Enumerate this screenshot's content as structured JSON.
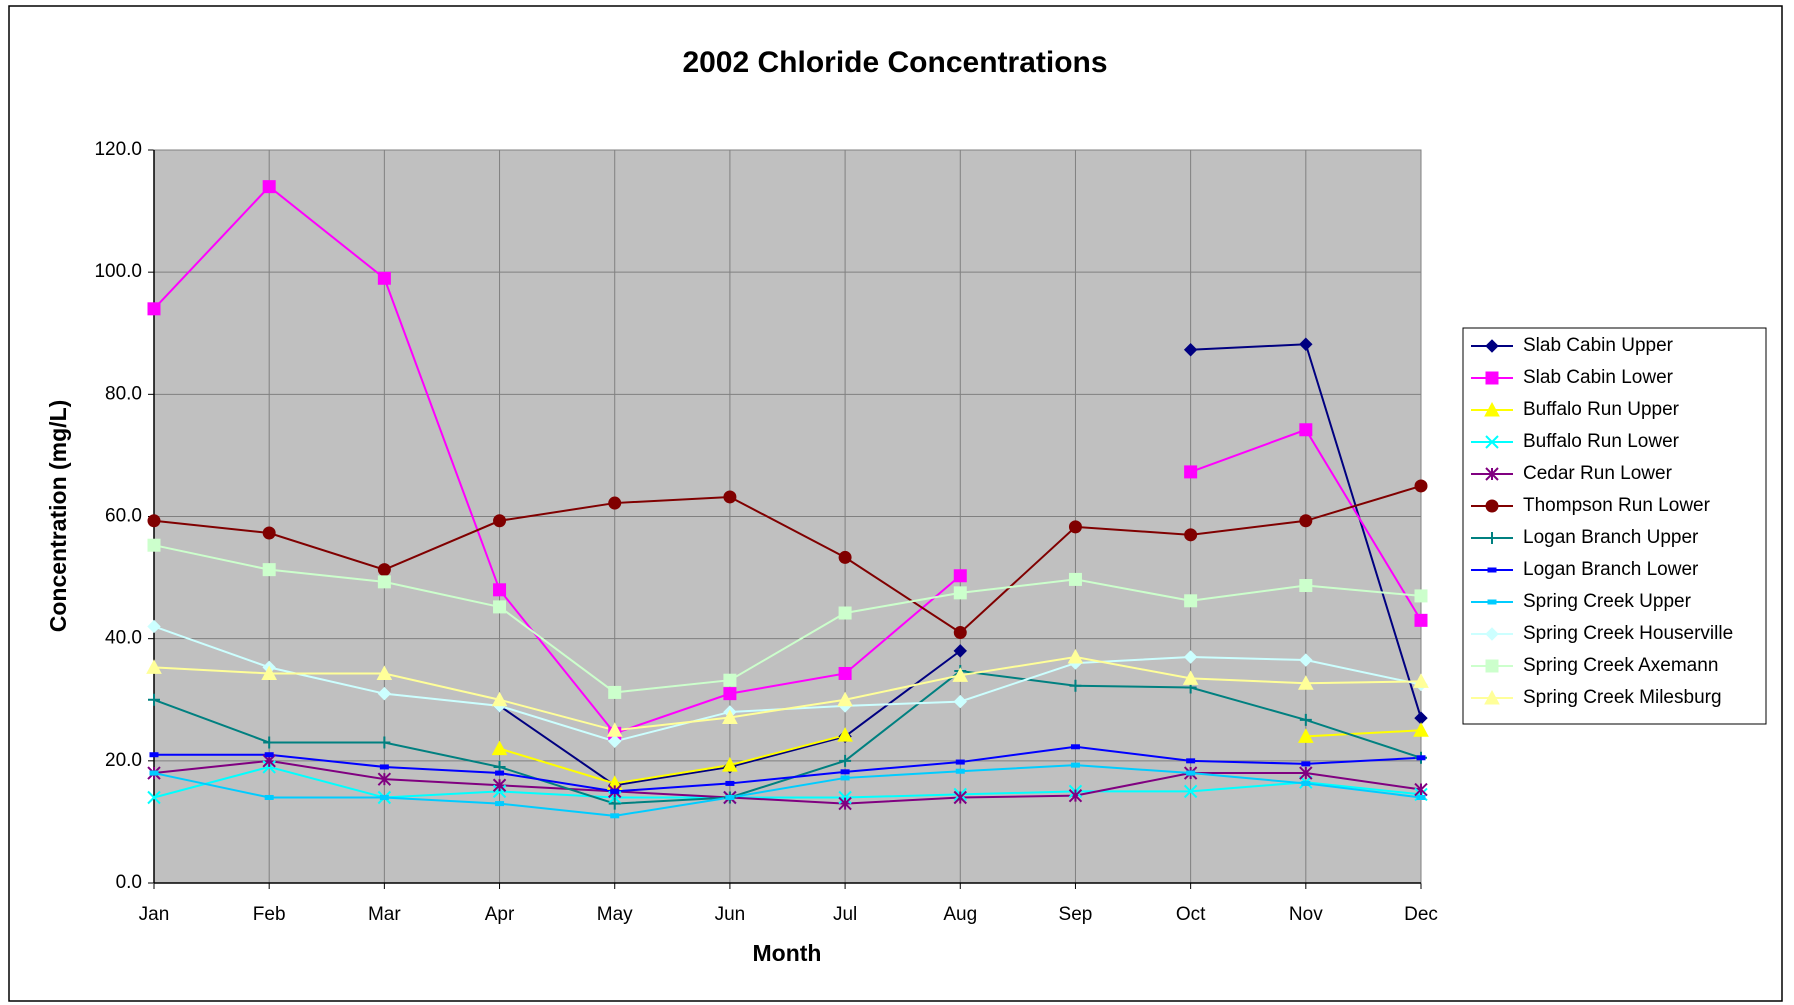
{
  "chart_data": {
    "type": "line",
    "title": "2002 Chloride Concentrations",
    "x_label": "Month",
    "y_label": "Concentration (mg/L)",
    "categories": [
      "Jan",
      "Feb",
      "Mar",
      "Apr",
      "May",
      "Jun",
      "Jul",
      "Aug",
      "Sep",
      "Oct",
      "Nov",
      "Dec"
    ],
    "ylim": [
      0,
      120
    ],
    "yticks": [
      {
        "value": 0,
        "label": "0.0"
      },
      {
        "value": 20,
        "label": "20.0"
      },
      {
        "value": 40,
        "label": "40.0"
      },
      {
        "value": 60,
        "label": "60.0"
      },
      {
        "value": 80,
        "label": "80.0"
      },
      {
        "value": 100,
        "label": "100.0"
      },
      {
        "value": 120,
        "label": "120.0"
      }
    ],
    "grid": true,
    "legend": "right",
    "series": [
      {
        "name": "Slab Cabin Upper",
        "color": "#000080",
        "marker": "diamond",
        "values": [
          null,
          null,
          null,
          29,
          16,
          19,
          24,
          38,
          null,
          87.3,
          88.2,
          27
        ]
      },
      {
        "name": "Slab Cabin Lower",
        "color": "#ff00ff",
        "marker": "square",
        "values": [
          94,
          114,
          99,
          48,
          24.5,
          31,
          34.3,
          50.3,
          null,
          67.3,
          74.2,
          43
        ]
      },
      {
        "name": "Buffalo Run Upper",
        "color": "#ffff00",
        "marker": "triangle",
        "values": [
          null,
          null,
          null,
          22,
          16.3,
          19.3,
          24.2,
          null,
          null,
          null,
          24,
          25
        ]
      },
      {
        "name": "Buffalo Run Lower",
        "color": "#00ffff",
        "marker": "x",
        "values": [
          14,
          19,
          14,
          15,
          14,
          14,
          14,
          14.5,
          15,
          15,
          16.5,
          14.5
        ]
      },
      {
        "name": "Cedar Run Lower",
        "color": "#800080",
        "marker": "star",
        "values": [
          18,
          20,
          17,
          16,
          15,
          14,
          13,
          14,
          14.3,
          18,
          18,
          15.3
        ]
      },
      {
        "name": "Thompson Run Lower",
        "color": "#800000",
        "marker": "circle",
        "values": [
          59.3,
          57.3,
          51.3,
          59.3,
          62.2,
          63.2,
          53.3,
          41,
          58.3,
          57,
          59.3,
          65
        ]
      },
      {
        "name": "Logan Branch Upper",
        "color": "#008080",
        "marker": "plus",
        "values": [
          30,
          23,
          23,
          19,
          13,
          14,
          20,
          34.7,
          32.3,
          32,
          26.7,
          20.5
        ]
      },
      {
        "name": "Logan Branch Lower",
        "color": "#0000ff",
        "marker": "dash",
        "values": [
          21,
          21,
          19,
          18,
          15,
          16.3,
          18.2,
          19.8,
          22.3,
          20,
          19.5,
          20.5
        ]
      },
      {
        "name": "Spring Creek Upper",
        "color": "#00ccff",
        "marker": "dash",
        "values": [
          18,
          14,
          14,
          13,
          11,
          14,
          17.2,
          18.3,
          19.3,
          18,
          16.3,
          14
        ]
      },
      {
        "name": "Spring Creek Houserville",
        "color": "#ccffff",
        "marker": "diamond",
        "values": [
          42,
          35.3,
          31,
          29,
          23.2,
          28,
          29,
          29.7,
          36,
          37,
          36.5,
          32.5
        ]
      },
      {
        "name": "Spring Creek Axemann",
        "color": "#ccffcc",
        "marker": "square",
        "values": [
          55.3,
          51.3,
          49.3,
          45.2,
          31.2,
          33.2,
          44.2,
          47.5,
          49.7,
          46.2,
          48.7,
          47
        ]
      },
      {
        "name": "Spring Creek Milesburg",
        "color": "#ffff99",
        "marker": "triangle",
        "values": [
          35.3,
          34.3,
          34.3,
          30,
          25,
          27.1,
          30,
          34,
          37,
          33.5,
          32.7,
          33
        ]
      }
    ]
  }
}
